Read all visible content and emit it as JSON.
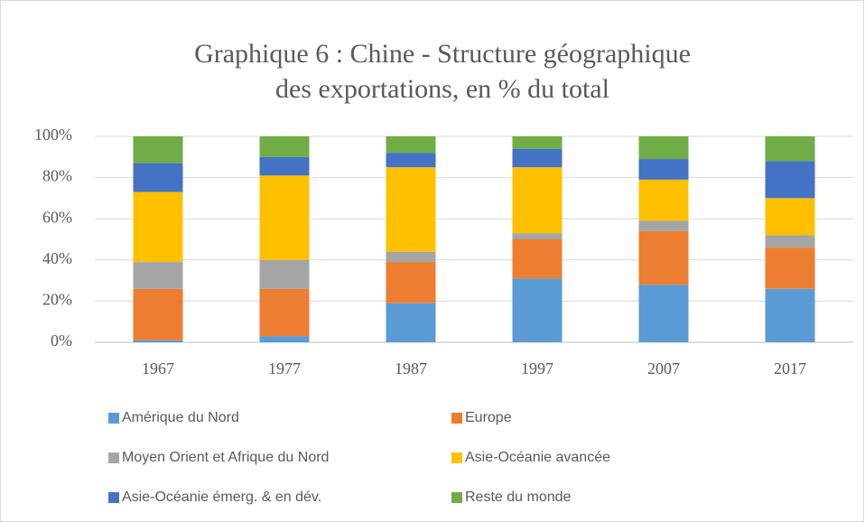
{
  "chart_data": {
    "type": "stacked_bar",
    "title": [
      "Graphique 6 : Chine - Structure géographique",
      "des exportations, en % du total"
    ],
    "categories": [
      "1967",
      "1977",
      "1987",
      "1997",
      "2007",
      "2017"
    ],
    "series": [
      {
        "name": "Amérique du Nord",
        "color": "#5b9bd5",
        "values": [
          1,
          3,
          19,
          31,
          28,
          26
        ]
      },
      {
        "name": "Europe",
        "color": "#ed7d31",
        "values": [
          25,
          23,
          20,
          19,
          26,
          20
        ]
      },
      {
        "name": "Moyen Orient et Afrique du Nord",
        "color": "#a5a5a5",
        "values": [
          13,
          14,
          5,
          3,
          5,
          6
        ]
      },
      {
        "name": "Asie-Océanie avancée",
        "color": "#ffc000",
        "values": [
          34,
          41,
          41,
          32,
          20,
          18
        ]
      },
      {
        "name": "Asie-Océanie émerg. & en dév.",
        "color": "#4472c4",
        "values": [
          14,
          9,
          7,
          9,
          10,
          18
        ]
      },
      {
        "name": "Reste du monde",
        "color": "#70ad47",
        "values": [
          13,
          10,
          8,
          6,
          11,
          12
        ]
      }
    ],
    "ylim": [
      0,
      100
    ],
    "yticks": [
      {
        "value": 0,
        "label": "0%"
      },
      {
        "value": 20,
        "label": "20%"
      },
      {
        "value": 40,
        "label": "40%"
      },
      {
        "value": 60,
        "label": "60%"
      },
      {
        "value": 80,
        "label": "80%"
      },
      {
        "value": 100,
        "label": "100%"
      }
    ],
    "grid": true,
    "legend": "bottom"
  }
}
